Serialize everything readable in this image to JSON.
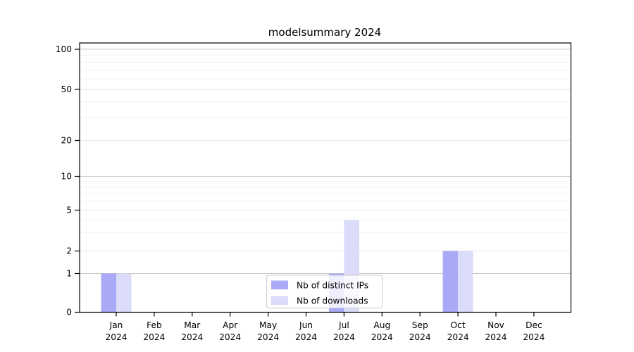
{
  "chart": {
    "title": "modelsummary 2024"
  },
  "chart_data": {
    "type": "bar",
    "title": "modelsummary 2024",
    "categories": [
      "Jan 2024",
      "Feb 2024",
      "Mar 2024",
      "Apr 2024",
      "May 2024",
      "Jun 2024",
      "Jul 2024",
      "Aug 2024",
      "Sep 2024",
      "Oct 2024",
      "Nov 2024",
      "Dec 2024"
    ],
    "x_tick_months": [
      "Jan",
      "Feb",
      "Mar",
      "Apr",
      "May",
      "Jun",
      "Jul",
      "Aug",
      "Sep",
      "Oct",
      "Nov",
      "Dec"
    ],
    "x_tick_year": "2024",
    "series": [
      {
        "name": "Nb of distinct IPs",
        "color": "#a9a9f5",
        "values": [
          1,
          0,
          0,
          0,
          0,
          0,
          1,
          0,
          0,
          2,
          0,
          0
        ]
      },
      {
        "name": "Nb of downloads",
        "color": "#dbdbfa",
        "values": [
          1,
          0,
          0,
          0,
          0,
          0,
          4,
          0,
          0,
          2,
          0,
          0
        ]
      }
    ],
    "yscale": "symlog",
    "y_ticks": [
      0,
      1,
      2,
      5,
      10,
      20,
      50,
      100
    ],
    "y_minor_gridlines": [
      3,
      4,
      6,
      7,
      8,
      9,
      30,
      40,
      60,
      70,
      80,
      90
    ],
    "ylim": [
      0,
      110
    ],
    "grid": true,
    "legend_position": "lower center",
    "colors": {
      "grid_major_decade": "#c9c9c9",
      "grid_major_other": "#e6e6e6",
      "grid_minor": "#f1f1f1",
      "spine": "#000000",
      "legend_border": "#cccccc"
    }
  }
}
